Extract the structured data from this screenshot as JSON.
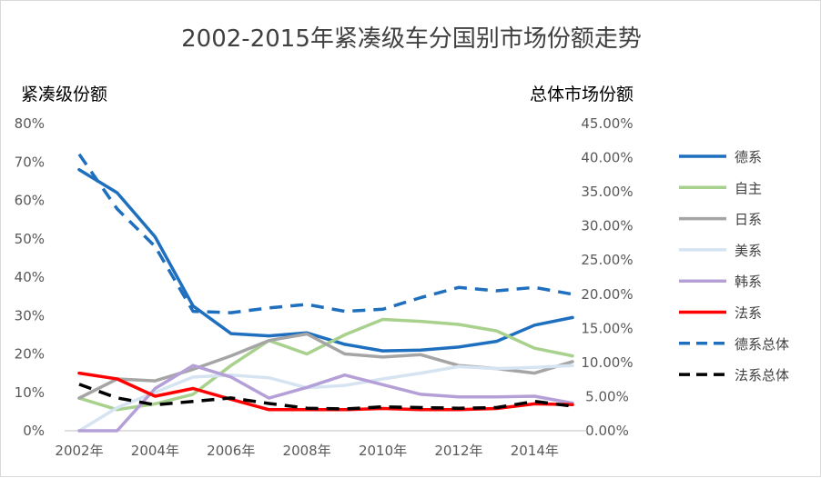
{
  "chart_data": {
    "type": "line",
    "title": "2002-2015年紧凑级车分国别市场份额走势",
    "ylabel_left": "紧凑级份额",
    "ylabel_right": "总体市场份额",
    "x": [
      2002,
      2003,
      2004,
      2005,
      2006,
      2007,
      2008,
      2009,
      2010,
      2011,
      2012,
      2013,
      2014,
      2015
    ],
    "x_tick_labels": [
      "2002年",
      "2004年",
      "2006年",
      "2008年",
      "2010年",
      "2012年",
      "2014年"
    ],
    "y_left_ticks": [
      "0%",
      "10%",
      "20%",
      "30%",
      "40%",
      "50%",
      "60%",
      "70%",
      "80%"
    ],
    "y_right_ticks": [
      "0.00%",
      "5.00%",
      "10.00%",
      "15.00%",
      "20.00%",
      "25.00%",
      "30.00%",
      "35.00%",
      "40.00%",
      "45.00%"
    ],
    "ylim_left": [
      0,
      0.8
    ],
    "ylim_right": [
      0,
      0.45
    ],
    "legend_position": "right",
    "grid": false,
    "series": [
      {
        "name": "德系",
        "axis": "left",
        "color": "#1f6fbf",
        "dash": false,
        "values": [
          0.68,
          0.62,
          0.505,
          0.325,
          0.253,
          0.247,
          0.255,
          0.225,
          0.208,
          0.21,
          0.218,
          0.233,
          0.275,
          0.295
        ]
      },
      {
        "name": "自主",
        "axis": "left",
        "color": "#a9d18e",
        "dash": false,
        "values": [
          0.085,
          0.055,
          0.07,
          0.095,
          0.17,
          0.235,
          0.2,
          0.25,
          0.29,
          0.285,
          0.277,
          0.26,
          0.215,
          0.195
        ]
      },
      {
        "name": "日系",
        "axis": "left",
        "color": "#a5a5a5",
        "dash": false,
        "values": [
          0.085,
          0.135,
          0.13,
          0.16,
          0.195,
          0.235,
          0.252,
          0.2,
          0.192,
          0.198,
          0.17,
          0.162,
          0.15,
          0.18
        ]
      },
      {
        "name": "美系",
        "axis": "left",
        "color": "#d6e4f2",
        "dash": false,
        "values": [
          0.0,
          0.06,
          0.1,
          0.14,
          0.145,
          0.138,
          0.112,
          0.118,
          0.135,
          0.15,
          0.167,
          0.162,
          0.165,
          0.17
        ]
      },
      {
        "name": "韩系",
        "axis": "left",
        "color": "#b4a0d6",
        "dash": false,
        "values": [
          0.0,
          0.0,
          0.11,
          0.17,
          0.14,
          0.085,
          0.113,
          0.145,
          0.12,
          0.095,
          0.088,
          0.088,
          0.09,
          0.072
        ]
      },
      {
        "name": "法系",
        "axis": "left",
        "color": "#ff0000",
        "dash": false,
        "values": [
          0.15,
          0.135,
          0.09,
          0.11,
          0.082,
          0.055,
          0.055,
          0.055,
          0.058,
          0.055,
          0.055,
          0.058,
          0.07,
          0.068
        ]
      },
      {
        "name": "德系总体",
        "axis": "right",
        "color": "#1f6fbf",
        "dash": true,
        "values": [
          0.405,
          0.325,
          0.27,
          0.175,
          0.173,
          0.18,
          0.185,
          0.175,
          0.178,
          0.195,
          0.21,
          0.205,
          0.21,
          0.2
        ]
      },
      {
        "name": "法系总体",
        "axis": "right",
        "color": "#000000",
        "dash": true,
        "values": [
          0.068,
          0.048,
          0.038,
          0.043,
          0.048,
          0.04,
          0.033,
          0.032,
          0.035,
          0.034,
          0.033,
          0.034,
          0.043,
          0.036
        ]
      }
    ]
  }
}
